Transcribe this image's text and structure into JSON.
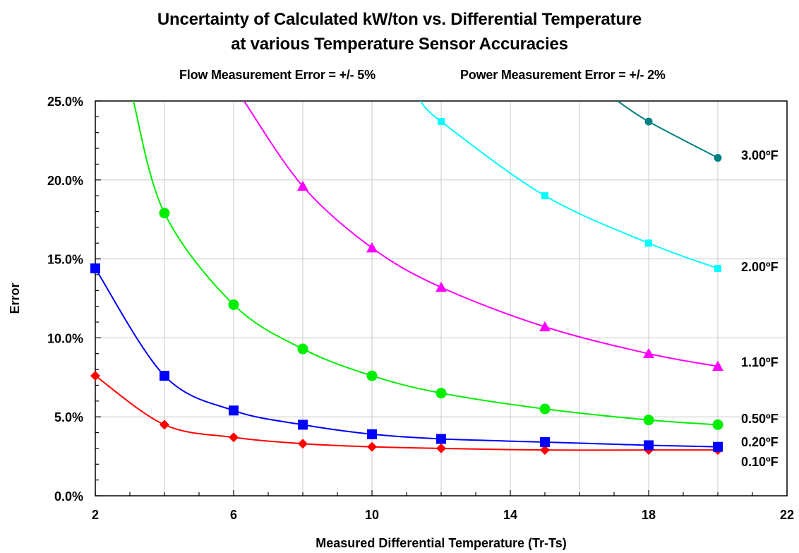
{
  "chart_data": {
    "type": "line",
    "title": "Uncertainty of Calculated kW/ton vs. Differential Temperature",
    "subtitle": "at various Temperature Sensor Accuracies",
    "notes": [
      "Flow Measurement Error = +/- 5%",
      "Power Measurement Error = +/- 2%"
    ],
    "xlabel": "Measured Differential Temperature (Tr-Ts)",
    "ylabel": "Error",
    "xlim": [
      2,
      22
    ],
    "ylim": [
      0,
      25
    ],
    "x_ticks": [
      "2",
      "6",
      "10",
      "14",
      "18",
      "22"
    ],
    "y_ticks": [
      "0.0%",
      "5.0%",
      "10.0%",
      "15.0%",
      "20.0%",
      "25.0%"
    ],
    "grid": true,
    "series": [
      {
        "name": "0.10ºF",
        "color": "#ff0000",
        "marker": "diamond",
        "x": [
          2,
          4,
          6,
          8,
          10,
          12,
          15,
          18,
          20
        ],
        "y": [
          7.6,
          4.5,
          3.7,
          3.3,
          3.1,
          3.0,
          2.9,
          2.9,
          2.9
        ]
      },
      {
        "name": "0.20ºF",
        "color": "#0000ff",
        "marker": "square",
        "x": [
          2,
          4,
          6,
          8,
          10,
          12,
          15,
          18,
          20
        ],
        "y": [
          14.4,
          7.6,
          5.4,
          4.5,
          3.9,
          3.6,
          3.4,
          3.2,
          3.1
        ]
      },
      {
        "name": "0.50ºF",
        "color": "#00ee00",
        "marker": "circle",
        "x": [
          3.1,
          4,
          6,
          8,
          10,
          12,
          15,
          18,
          20
        ],
        "y": [
          25.0,
          17.9,
          12.1,
          9.3,
          7.6,
          6.5,
          5.5,
          4.8,
          4.5
        ]
      },
      {
        "name": "1.10ºF",
        "color": "#ff00ff",
        "marker": "triangle",
        "x": [
          6.3,
          8,
          10,
          12,
          15,
          18,
          20
        ],
        "y": [
          25.0,
          19.6,
          15.7,
          13.2,
          10.7,
          9.0,
          8.2
        ]
      },
      {
        "name": "2.00ºF",
        "color": "#00ffff",
        "marker": "square-small",
        "x": [
          11.4,
          12,
          15,
          18,
          20
        ],
        "y": [
          25.0,
          23.7,
          19.0,
          16.0,
          14.4
        ]
      },
      {
        "name": "3.00ºF",
        "color": "#008080",
        "marker": "circle-small",
        "x": [
          17.1,
          18,
          20
        ],
        "y": [
          25.0,
          23.7,
          21.4
        ]
      }
    ]
  }
}
